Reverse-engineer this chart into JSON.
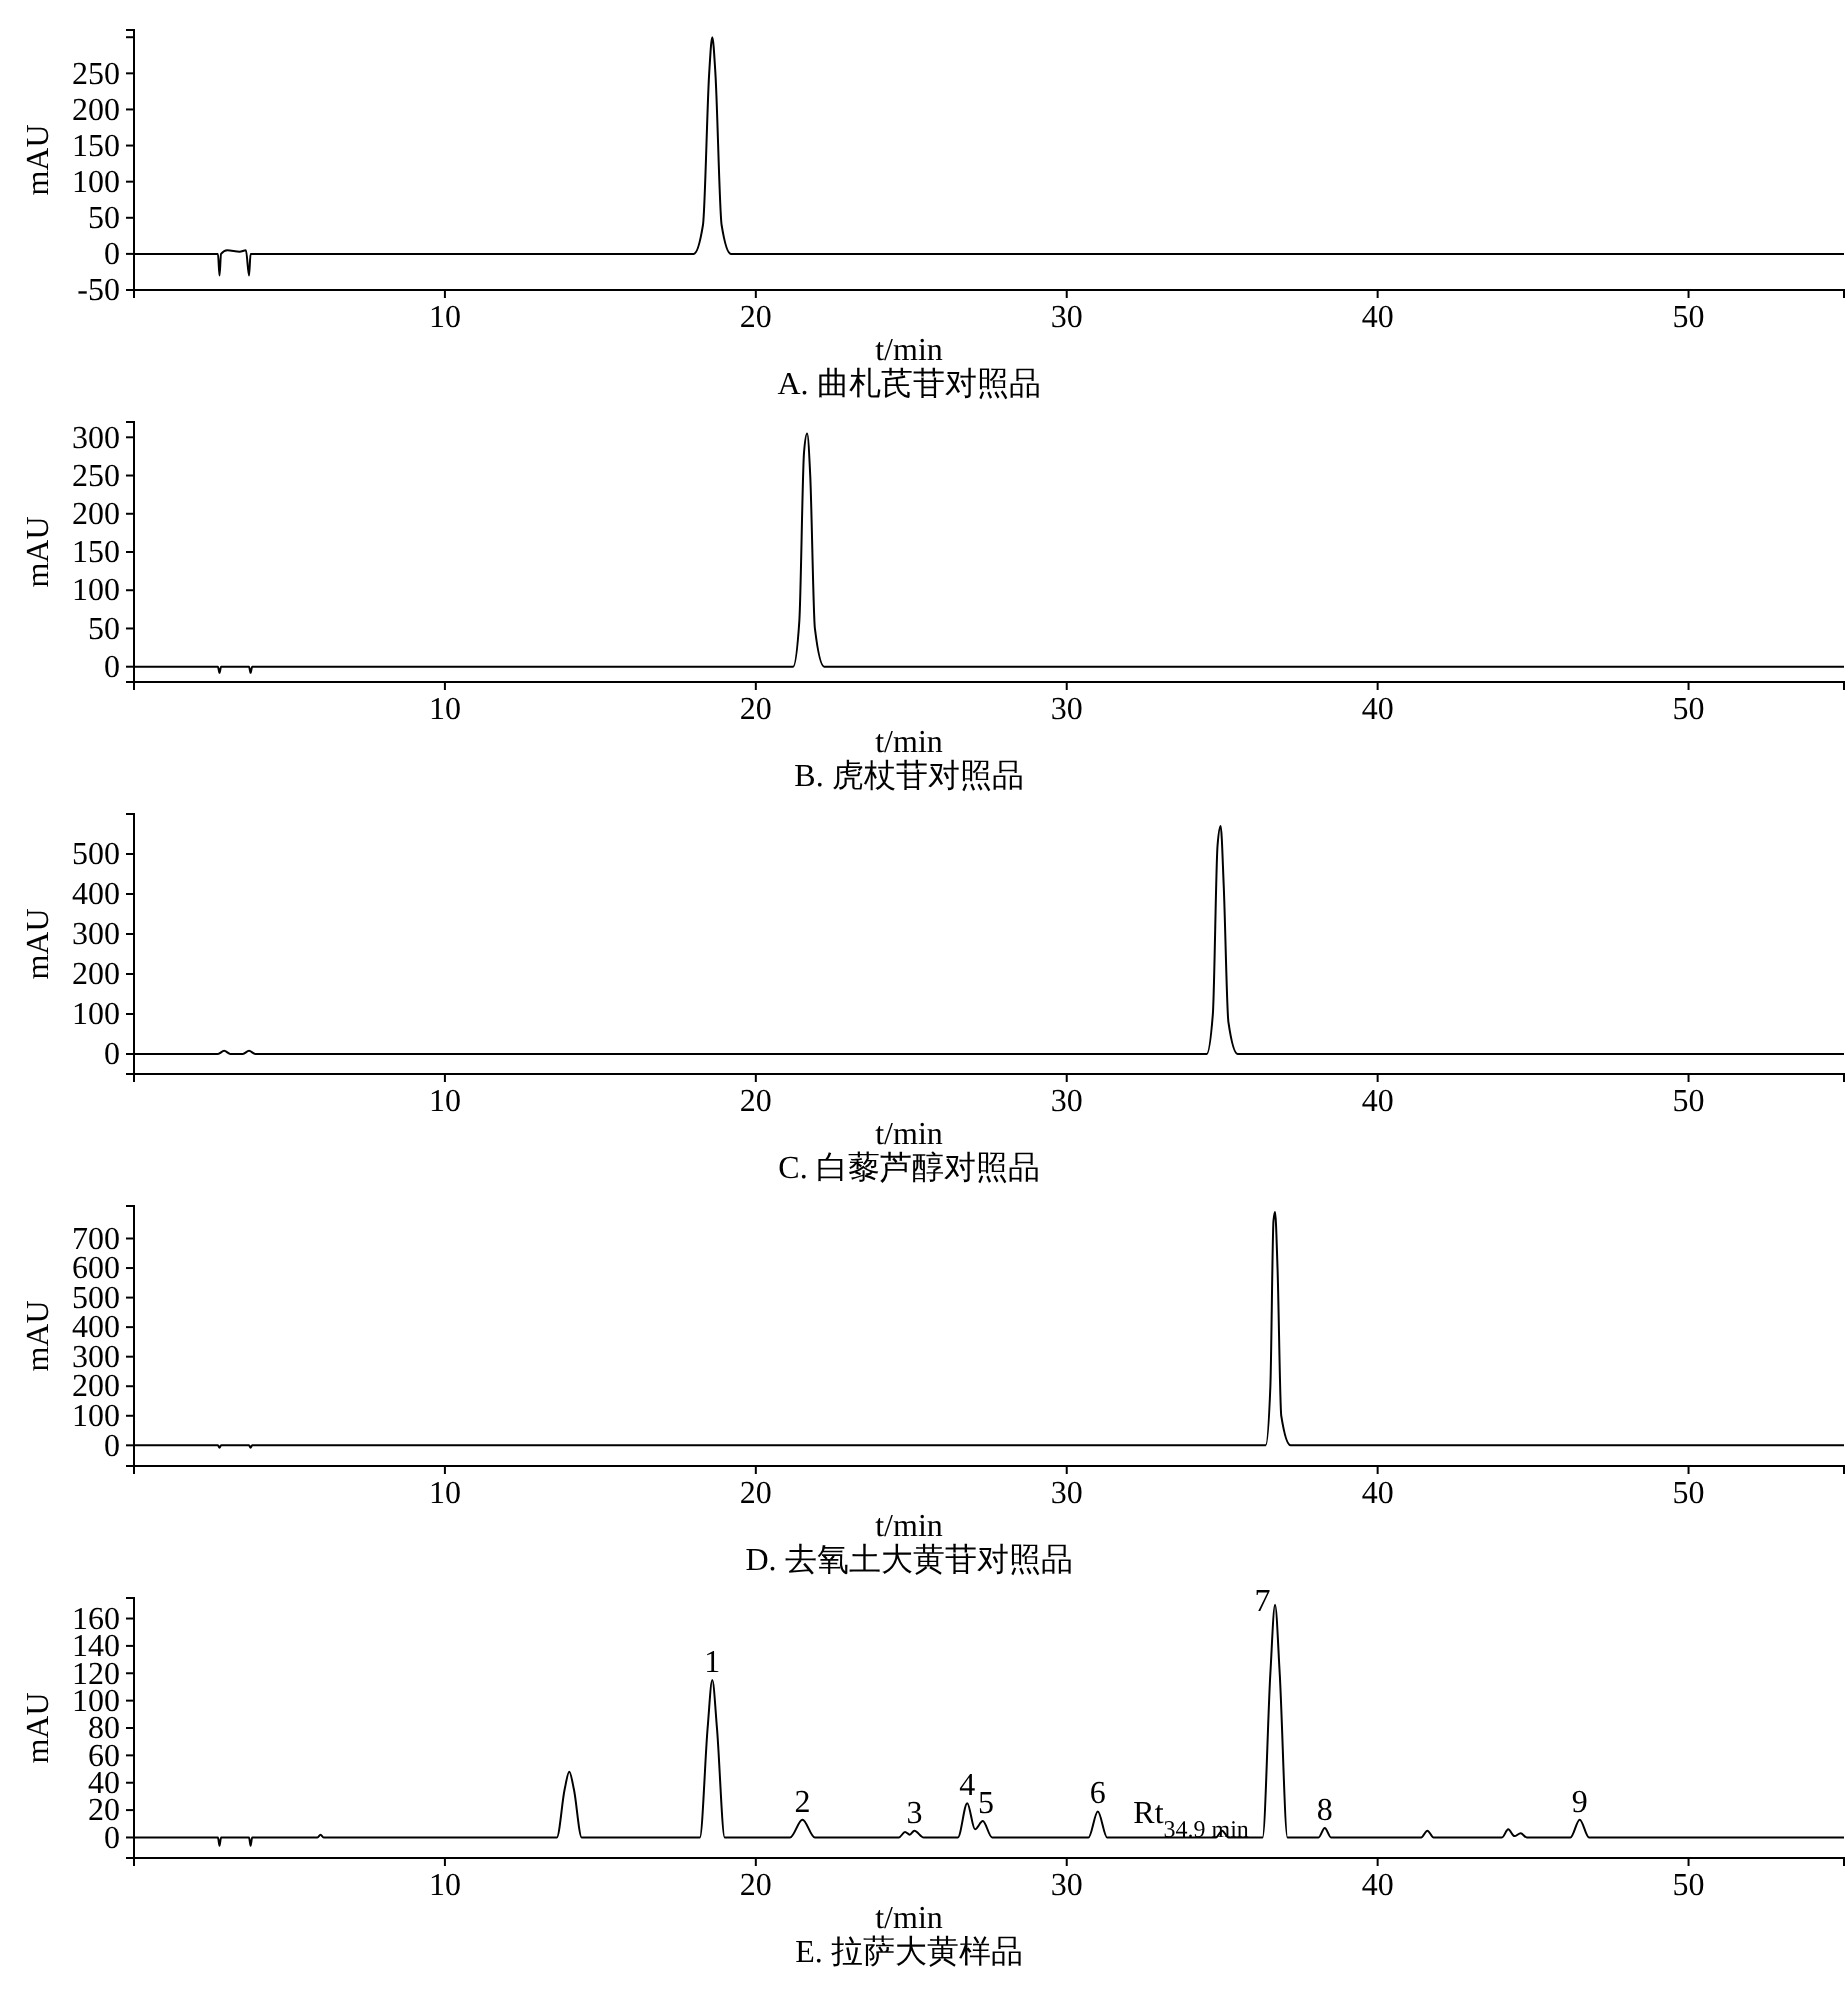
{
  "chart_data": [
    {
      "type": "line",
      "title": "A. 曲札芪苷对照品",
      "xlabel": "t/min",
      "ylabel": "mAU",
      "xlim": [
        0,
        55
      ],
      "xticks": [
        10,
        20,
        30,
        40,
        50
      ],
      "ylim": [
        -50,
        310
      ],
      "yticks": [
        -50,
        0,
        50,
        100,
        150,
        200,
        250,
        {
          "value": 300,
          "label": null
        }
      ],
      "color": "#000000",
      "x": [
        0,
        2.7,
        2.75,
        2.8,
        3.0,
        3.4,
        3.6,
        3.7,
        3.75,
        18.0,
        18.3,
        18.5,
        18.6,
        18.7,
        18.9,
        19.2,
        55
      ],
      "values": [
        0,
        0,
        -30,
        0,
        5,
        3,
        5,
        -30,
        0,
        0,
        40,
        250,
        300,
        250,
        40,
        0,
        0
      ]
    },
    {
      "type": "line",
      "title": "B. 虎杖苷对照品",
      "xlabel": "t/min",
      "ylabel": "mAU",
      "xlim": [
        0,
        55
      ],
      "xticks": [
        10,
        20,
        30,
        40,
        50
      ],
      "ylim": [
        -20,
        320
      ],
      "yticks": [
        0,
        50,
        100,
        150,
        200,
        250,
        300
      ],
      "color": "#000000",
      "x": [
        0,
        2.7,
        2.75,
        2.8,
        3.7,
        3.75,
        3.8,
        21.2,
        21.4,
        21.55,
        21.65,
        21.75,
        21.9,
        22.2,
        55
      ],
      "values": [
        0,
        0,
        -8,
        0,
        0,
        -8,
        0,
        0,
        60,
        280,
        305,
        250,
        50,
        0,
        0
      ]
    },
    {
      "type": "line",
      "title": "C. 白藜芦醇对照品",
      "xlabel": "t/min",
      "ylabel": "mAU",
      "xlim": [
        0,
        55
      ],
      "xticks": [
        10,
        20,
        30,
        40,
        50
      ],
      "ylim": [
        -50,
        600
      ],
      "yticks": [
        0,
        100,
        200,
        300,
        400,
        500
      ],
      "color": "#000000",
      "x": [
        0,
        2.7,
        2.9,
        3.1,
        3.5,
        3.7,
        3.9,
        34.5,
        34.7,
        34.85,
        34.95,
        35.05,
        35.2,
        35.5,
        55
      ],
      "values": [
        0,
        0,
        8,
        0,
        0,
        8,
        0,
        0,
        100,
        520,
        570,
        420,
        80,
        0,
        0
      ]
    },
    {
      "type": "line",
      "title": "D. 去氧土大黄苷对照品",
      "xlabel": "t/min",
      "ylabel": "mAU",
      "xlim": [
        0,
        55
      ],
      "xticks": [
        10,
        20,
        30,
        40,
        50
      ],
      "ylim": [
        -70,
        810
      ],
      "yticks": [
        0,
        100,
        200,
        300,
        400,
        500,
        600,
        700
      ],
      "color": "#000000",
      "x": [
        0,
        2.7,
        2.75,
        2.8,
        3.7,
        3.75,
        3.8,
        36.4,
        36.55,
        36.65,
        36.7,
        36.78,
        36.9,
        37.2,
        55
      ],
      "values": [
        0,
        0,
        -8,
        0,
        0,
        -8,
        0,
        0,
        200,
        760,
        790,
        600,
        100,
        0,
        0
      ]
    },
    {
      "type": "line",
      "title": "E. 拉萨大黄样品",
      "xlabel": "t/min",
      "ylabel": "mAU",
      "xlim": [
        0,
        55
      ],
      "xticks": [
        10,
        20,
        30,
        40,
        50
      ],
      "ylim": [
        -15,
        175
      ],
      "yticks": [
        0,
        20,
        40,
        60,
        80,
        100,
        120,
        140,
        160
      ],
      "color": "#000000",
      "x": [
        0,
        2.7,
        2.75,
        2.8,
        3.7,
        3.75,
        3.8,
        5.9,
        6.0,
        6.1,
        13.6,
        13.85,
        14.0,
        14.15,
        14.4,
        18.2,
        18.45,
        18.6,
        18.75,
        19.0,
        21.1,
        21.5,
        21.9,
        24.6,
        24.8,
        24.95,
        25.1,
        25.4,
        26.5,
        26.8,
        27.05,
        27.3,
        27.6,
        30.7,
        31.0,
        31.3,
        34.8,
        35.0,
        35.2,
        36.3,
        36.55,
        36.7,
        36.85,
        37.1,
        38.1,
        38.3,
        38.5,
        41.4,
        41.6,
        41.8,
        44.0,
        44.2,
        44.4,
        44.6,
        44.8,
        46.2,
        46.5,
        46.8,
        55
      ],
      "values": [
        0,
        0,
        -6,
        0,
        0,
        -6,
        0,
        0,
        2,
        0,
        0,
        35,
        48,
        35,
        0,
        0,
        80,
        115,
        80,
        0,
        0,
        13,
        0,
        0,
        4,
        2,
        5,
        0,
        0,
        25,
        6,
        12,
        0,
        0,
        19,
        0,
        0,
        5,
        0,
        0,
        120,
        170,
        120,
        0,
        0,
        7,
        0,
        0,
        5,
        0,
        0,
        6,
        1,
        3,
        0,
        0,
        13,
        0,
        0
      ],
      "annotations": [
        {
          "text": "1",
          "x": 18.6,
          "y": 115
        },
        {
          "text": "2",
          "x": 21.5,
          "y": 13
        },
        {
          "text": "3",
          "x": 25.1,
          "y": 5
        },
        {
          "text": "4",
          "x": 26.8,
          "y": 25
        },
        {
          "text": "5",
          "x": 27.4,
          "y": 12
        },
        {
          "text": "6",
          "x": 31.0,
          "y": 19
        },
        {
          "text": "Rt$_{34.9 min}$",
          "x": 34.0,
          "y": 5
        },
        {
          "text": "7",
          "x": 36.3,
          "y": 160
        },
        {
          "text": "8",
          "x": 38.3,
          "y": 7
        },
        {
          "text": "9",
          "x": 46.5,
          "y": 13
        }
      ]
    }
  ]
}
